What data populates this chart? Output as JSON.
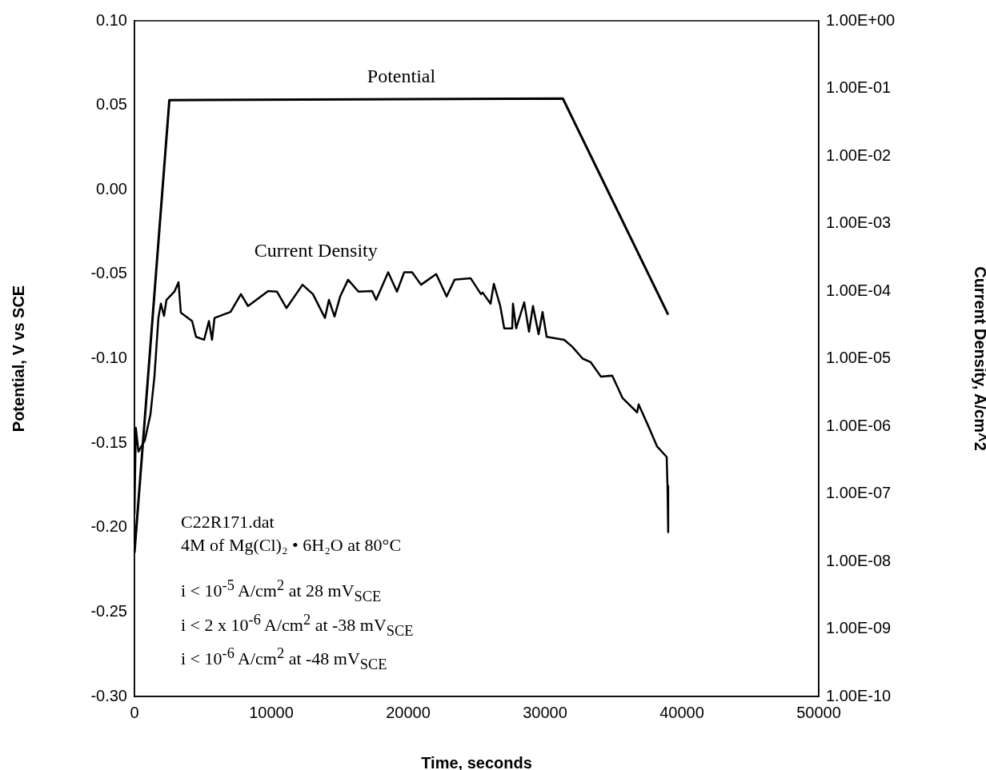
{
  "chart_data": {
    "type": "line",
    "xlabel": "Time, seconds",
    "ylabel": "Potential, V vs SCE",
    "y2label": "Current Density, A/cm^2",
    "xlim": [
      0,
      50000
    ],
    "xticks": [
      0,
      10000,
      20000,
      30000,
      40000,
      50000
    ],
    "ylim": [
      -0.3,
      0.1
    ],
    "yticks": [
      {
        "value": -0.3,
        "label": "-0.30"
      },
      {
        "value": -0.25,
        "label": "-0.25"
      },
      {
        "value": -0.2,
        "label": "-0.20"
      },
      {
        "value": -0.15,
        "label": "-0.15"
      },
      {
        "value": -0.1,
        "label": "-0.10"
      },
      {
        "value": -0.05,
        "label": "-0.05"
      },
      {
        "value": 0,
        "label": "0.00"
      },
      {
        "value": 0.05,
        "label": "0.05"
      },
      {
        "value": 0.1,
        "label": "0.10"
      }
    ],
    "y2lim": [
      1e-10,
      1
    ],
    "y2ticks": [
      {
        "value": 1e-10,
        "label": "1.00E-10"
      },
      {
        "value": 1e-09,
        "label": "1.00E-09"
      },
      {
        "value": 1e-08,
        "label": "1.00E-08"
      },
      {
        "value": 1e-07,
        "label": "1.00E-07"
      },
      {
        "value": 1e-06,
        "label": "1.00E-06"
      },
      {
        "value": 1e-05,
        "label": "1.00E-05"
      },
      {
        "value": 0.0001,
        "label": "1.00E-04"
      },
      {
        "value": 0.001,
        "label": "1.00E-03"
      },
      {
        "value": 0.01,
        "label": "1.00E-02"
      },
      {
        "value": 0.1,
        "label": "1.00E-01"
      },
      {
        "value": 1,
        "label": "1.00E+00"
      }
    ],
    "log": "y2",
    "grid": false,
    "legend": false,
    "marker": "none",
    "line_style": "solid",
    "series": [
      {
        "name": "Potential",
        "color": "#000000",
        "x": [
          0,
          2550,
          31300,
          39000
        ],
        "values": [
          -0.215,
          0.053,
          0.054,
          -0.074
        ]
      },
      {
        "name": "Current Density",
        "color": "#000000",
        "axis": "y2",
        "x": [
          0,
          100,
          290,
          760,
          1170,
          1460,
          1750,
          1930,
          2160,
          2340,
          2920,
          3220,
          3390,
          4210,
          4500,
          5090,
          5440,
          5670,
          5850,
          7020,
          7780,
          8300,
          9770,
          10410,
          11110,
          12280,
          13040,
          13920,
          14210,
          14620,
          15030,
          15610,
          16370,
          17370,
          17660,
          18540,
          19180,
          19710,
          20290,
          20940,
          22050,
          22810,
          23390,
          24560,
          25320,
          25440,
          26020,
          26260,
          26730,
          27020,
          27600,
          27660,
          27890,
          28480,
          28830,
          29120,
          29530,
          29820,
          30120,
          31400,
          31990,
          32750,
          33330,
          34090,
          34910,
          35670,
          36730,
          36840,
          37600,
          38190,
          38890,
          38950,
          39000
        ],
        "values": [
          5e-08,
          9.5e-07,
          4.2e-07,
          6.2e-07,
          1.5e-06,
          5.4e-06,
          4e-05,
          6.5e-05,
          4.3e-05,
          7.4e-05,
          9.8e-05,
          0.000135,
          4.8e-05,
          3.6e-05,
          2.1e-05,
          1.9e-05,
          3.6e-05,
          1.9e-05,
          4e-05,
          4.9e-05,
          9e-05,
          6e-05,
          0.0001,
          9.8e-05,
          5.6e-05,
          0.000124,
          9e-05,
          4e-05,
          7.4e-05,
          4.2e-05,
          8.3e-05,
          0.000147,
          9.8e-05,
          0.0001,
          7.4e-05,
          0.00019,
          9.8e-05,
          0.00019,
          0.00019,
          0.000124,
          0.000178,
          8.3e-05,
          0.000147,
          0.000155,
          9e-05,
          9.5e-05,
          6.5e-05,
          0.000128,
          6e-05,
          2.8e-05,
          2.8e-05,
          6.5e-05,
          2.8e-05,
          6.8e-05,
          2.5e-05,
          6e-05,
          2.3e-05,
          4.9e-05,
          2.1e-05,
          1.9e-05,
          1.5e-05,
          1e-05,
          8.9e-06,
          5.4e-06,
          5.6e-06,
          2.6e-06,
          1.6e-06,
          2.1e-06,
          9.5e-07,
          5e-07,
          3.5e-07,
          1.3e-07,
          2.7e-08
        ]
      }
    ],
    "annotations": [
      "C22R171.dat",
      "4M of Mg(Cl)₂ • 6H₂O at 80°C",
      "i < 10$^{-5}$ A/cm$^{2}$ at 28 mV$_{SCE}$",
      "i < 2 x 10$^{-6}$ A/cm$^{2}$ at -38 mV$_{SCE}$",
      "i < 10$^{-6}$ A/cm$^{2}$ at -48 mV$_{SCE}$"
    ]
  }
}
